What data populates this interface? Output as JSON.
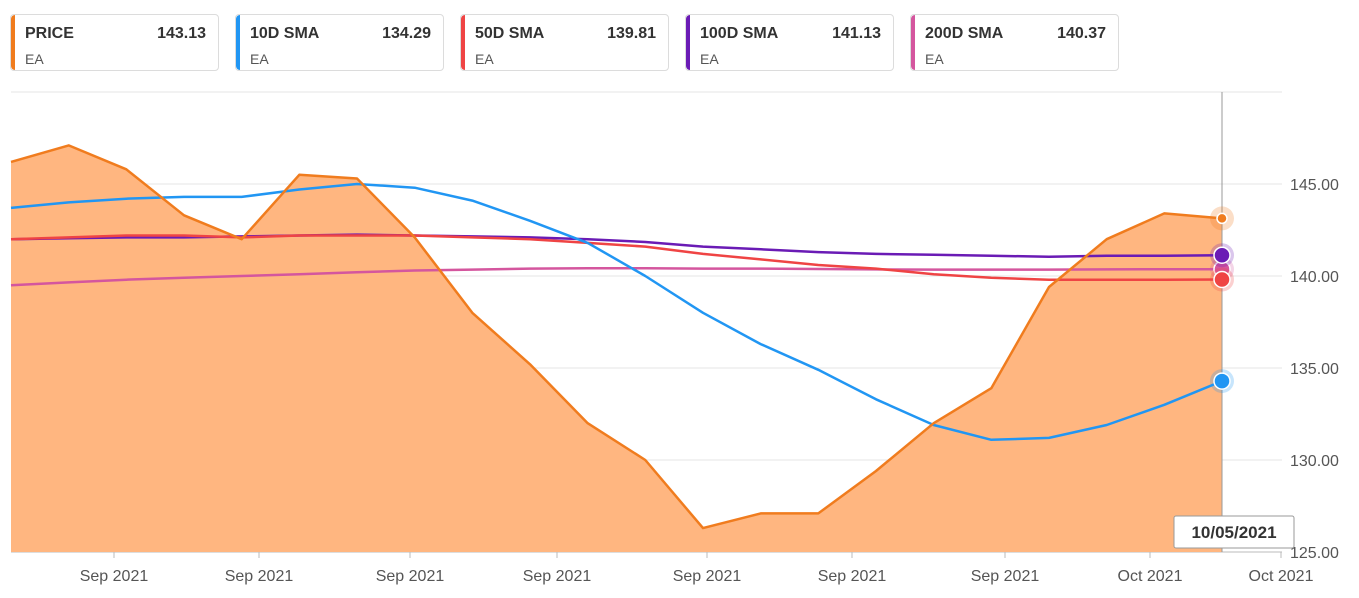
{
  "legend": [
    {
      "name": "PRICE",
      "value": "143.13",
      "symbol": "EA",
      "color": "#f07c1e"
    },
    {
      "name": "10D SMA",
      "value": "134.29",
      "symbol": "EA",
      "color": "#2196f3"
    },
    {
      "name": "50D SMA",
      "value": "139.81",
      "symbol": "EA",
      "color": "#ef4444"
    },
    {
      "name": "100D SMA",
      "value": "141.13",
      "symbol": "EA",
      "color": "#6a1bb5"
    },
    {
      "name": "200D SMA",
      "value": "140.37",
      "symbol": "EA",
      "color": "#d4569e"
    }
  ],
  "tooltip": {
    "date": "10/05/2021"
  },
  "chart_data": {
    "type": "line",
    "ylim": [
      125,
      150
    ],
    "y_ticks": [
      "145.00",
      "140.00",
      "135.00",
      "130.00",
      "125.00"
    ],
    "x_labels": [
      "Sep 2021",
      "Sep 2021",
      "Sep 2021",
      "Sep 2021",
      "Sep 2021",
      "Sep 2021",
      "Sep 2021",
      "Oct 2021",
      "Oct 2021"
    ],
    "grid": true,
    "series": [
      {
        "name": "PRICE",
        "type": "area",
        "color": "#f07c1e",
        "fill": "#ffb680",
        "values": [
          146.2,
          147.1,
          145.8,
          143.3,
          142.0,
          145.5,
          145.3,
          142.1,
          138.0,
          135.2,
          132.0,
          130.0,
          126.3,
          127.1,
          127.1,
          129.4,
          132.0,
          133.9,
          139.4,
          142.0,
          143.4,
          143.13
        ]
      },
      {
        "name": "10D SMA",
        "color": "#2196f3",
        "values": [
          143.7,
          144.0,
          144.2,
          144.3,
          144.3,
          144.7,
          145.0,
          144.8,
          144.1,
          143.0,
          141.8,
          140.0,
          138.0,
          136.3,
          134.9,
          133.3,
          131.9,
          131.1,
          131.2,
          131.9,
          133.0,
          134.29
        ]
      },
      {
        "name": "50D SMA",
        "color": "#ef4444",
        "values": [
          142.0,
          142.1,
          142.2,
          142.2,
          142.1,
          142.2,
          142.2,
          142.2,
          142.1,
          142.0,
          141.8,
          141.6,
          141.2,
          140.9,
          140.6,
          140.4,
          140.1,
          139.9,
          139.8,
          139.8,
          139.8,
          139.81
        ]
      },
      {
        "name": "100D SMA",
        "color": "#6a1bb5",
        "values": [
          142.0,
          142.05,
          142.1,
          142.1,
          142.15,
          142.2,
          142.25,
          142.2,
          142.15,
          142.1,
          142.0,
          141.85,
          141.6,
          141.45,
          141.3,
          141.2,
          141.15,
          141.1,
          141.05,
          141.1,
          141.1,
          141.13
        ]
      },
      {
        "name": "200D SMA",
        "color": "#d4569e",
        "values": [
          139.5,
          139.65,
          139.8,
          139.9,
          140.0,
          140.1,
          140.2,
          140.3,
          140.35,
          140.4,
          140.42,
          140.42,
          140.4,
          140.4,
          140.38,
          140.36,
          140.35,
          140.35,
          140.35,
          140.36,
          140.37,
          140.37
        ]
      }
    ]
  }
}
